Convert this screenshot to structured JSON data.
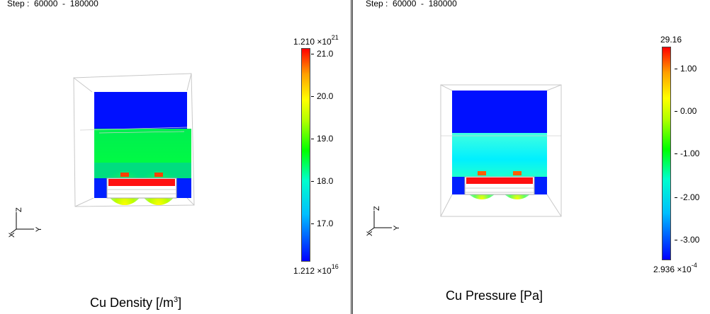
{
  "left": {
    "step": "Step :  60000  -  180000",
    "title_main": "Cu Density [/m",
    "title_sup": "3",
    "title_end": "]",
    "colorbar": {
      "max_mantissa": "1.210",
      "max_exp": "21",
      "min_mantissa": "1.212",
      "min_exp": "16",
      "ticks": [
        "21.0",
        "20.0",
        "19.0",
        "18.0",
        "17.0"
      ]
    },
    "axes": {
      "z": "Z",
      "y": "Y",
      "x": "X"
    }
  },
  "right": {
    "step": "Step :  60000  -  180000",
    "title": "Cu Pressure [Pa]",
    "colorbar": {
      "max": "29.16",
      "min_mantissa": "2.936",
      "min_exp": "-4",
      "ticks": [
        "1.00",
        "0.00",
        "-1.00",
        "-2.00",
        "-3.00"
      ]
    },
    "axes": {
      "z": "Z",
      "y": "Y",
      "x": "X"
    }
  }
}
